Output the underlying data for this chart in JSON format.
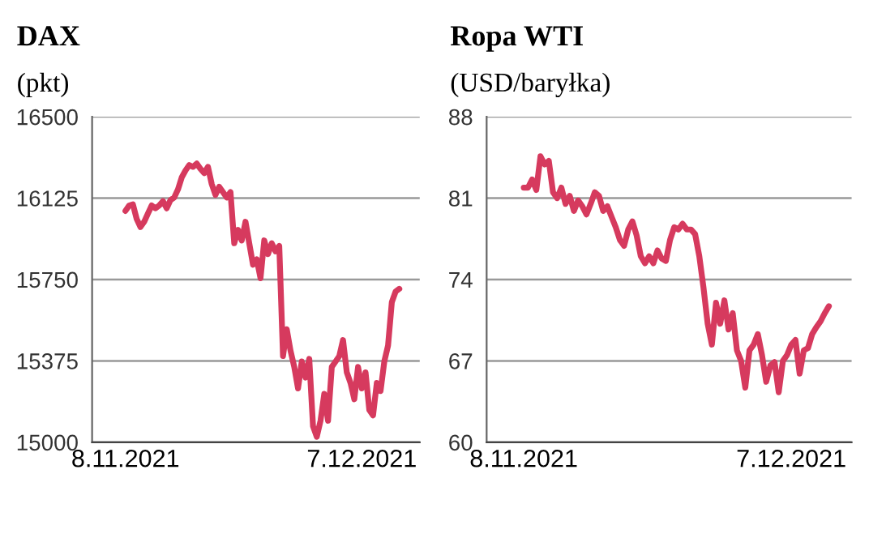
{
  "chart_data": [
    {
      "type": "line",
      "title": "DAX",
      "subtitle": "(pkt)",
      "grid": "y",
      "line_style": "solid",
      "ylim": [
        15000,
        16500
      ],
      "yticks": [
        15000,
        15375,
        15750,
        16125,
        16500
      ],
      "categories": [
        "8.11.2021",
        null,
        null,
        null,
        null,
        null,
        null,
        null,
        null,
        null,
        null,
        null,
        null,
        null,
        null,
        null,
        null,
        null,
        null,
        null,
        null,
        null,
        null,
        null,
        null,
        null,
        null,
        null,
        null,
        null,
        null,
        null,
        null,
        null,
        null,
        null,
        null,
        null,
        null,
        null,
        null,
        null,
        null,
        null,
        null,
        null,
        null,
        null,
        null,
        null,
        null,
        null,
        null,
        null,
        null,
        null,
        null,
        null,
        null,
        null,
        null,
        null,
        null,
        "7.12.2021",
        null,
        null,
        null,
        null,
        null,
        null,
        null,
        null,
        null,
        null
      ],
      "series": [
        {
          "color": "#d63a5e",
          "values": [
            16066,
            16091,
            16096,
            16029,
            15992,
            16016,
            16054,
            16091,
            16078,
            16091,
            16111,
            16078,
            16116,
            16128,
            16165,
            16220,
            16252,
            16277,
            16269,
            16284,
            16260,
            16240,
            16269,
            16190,
            16140,
            16177,
            16153,
            16128,
            16153,
            15917,
            15979,
            15930,
            16016,
            15917,
            15818,
            15843,
            15756,
            15930,
            15867,
            15917,
            15880,
            15905,
            15397,
            15521,
            15422,
            15347,
            15248,
            15372,
            15298,
            15384,
            15074,
            15025,
            15099,
            15223,
            15099,
            15347,
            15372,
            15397,
            15471,
            15322,
            15273,
            15198,
            15347,
            15248,
            15322,
            15149,
            15124,
            15273,
            15236,
            15372,
            15446,
            15645,
            15694,
            15707
          ]
        }
      ]
    },
    {
      "type": "line",
      "title": "Ropa WTI",
      "subtitle": "(USD/baryłka)",
      "grid": "y",
      "line_style": "solid",
      "ylim": [
        60,
        88
      ],
      "yticks": [
        60,
        67,
        74,
        81,
        88
      ],
      "categories": [
        "8.11.2021",
        null,
        null,
        null,
        null,
        null,
        null,
        null,
        null,
        null,
        null,
        null,
        null,
        null,
        null,
        null,
        null,
        null,
        null,
        null,
        null,
        null,
        null,
        null,
        null,
        null,
        null,
        null,
        null,
        null,
        null,
        null,
        null,
        null,
        null,
        null,
        null,
        null,
        null,
        null,
        null,
        null,
        null,
        null,
        null,
        null,
        null,
        null,
        null,
        null,
        null,
        null,
        null,
        null,
        null,
        null,
        null,
        null,
        null,
        null,
        null,
        null,
        null,
        null,
        "7.12.2021",
        null,
        null,
        null,
        null,
        null,
        null,
        null,
        null,
        null
      ],
      "series": [
        {
          "color": "#d63a5e",
          "values": [
            81.9,
            81.9,
            82.6,
            81.7,
            84.6,
            83.9,
            84.2,
            81.5,
            81.0,
            81.9,
            80.5,
            81.2,
            79.9,
            80.8,
            80.3,
            79.6,
            80.5,
            81.5,
            81.2,
            79.9,
            80.3,
            79.4,
            78.5,
            77.4,
            76.9,
            78.3,
            79.0,
            77.8,
            76.0,
            75.4,
            76.0,
            75.4,
            76.5,
            75.8,
            75.6,
            77.4,
            78.5,
            78.3,
            78.8,
            78.3,
            78.3,
            77.9,
            76.0,
            73.3,
            70.2,
            68.4,
            72.0,
            70.2,
            72.2,
            69.7,
            71.1,
            67.9,
            67.0,
            64.7,
            67.9,
            68.4,
            69.3,
            67.5,
            65.2,
            66.6,
            66.9,
            64.3,
            67.0,
            67.5,
            68.4,
            68.8,
            65.9,
            67.9,
            68.1,
            69.3,
            69.9,
            70.4,
            71.1,
            71.7
          ]
        }
      ]
    }
  ]
}
